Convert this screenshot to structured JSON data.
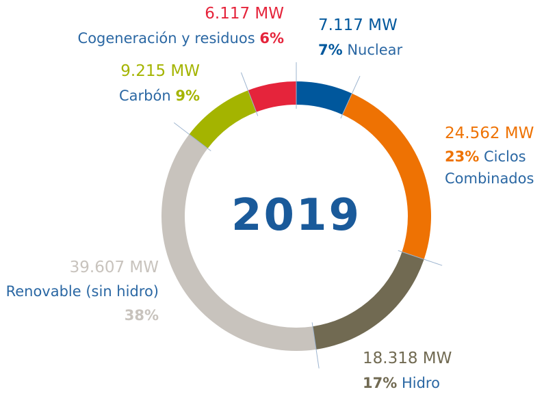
{
  "chart_data": {
    "type": "donut",
    "center_label": "2019",
    "categories": [
      "Nuclear",
      "Ciclos Combinados",
      "Hidro",
      "Renovable (sin hidro)",
      "Carbón",
      "Cogeneración y residuos"
    ],
    "values": [
      7117,
      24562,
      18318,
      39607,
      9215,
      6117
    ],
    "value_labels": [
      "7.117 MW",
      "24.562 MW",
      "18.318 MW",
      "39.607 MW",
      "9.215 MW",
      "6.117 MW"
    ],
    "percent_labels": [
      "7%",
      "23%",
      "17%",
      "38%",
      "9%",
      "6%"
    ],
    "colors": [
      "#00579c",
      "#ee7203",
      "#716a52",
      "#c8c3bd",
      "#a4b400",
      "#e5243b"
    ]
  }
}
